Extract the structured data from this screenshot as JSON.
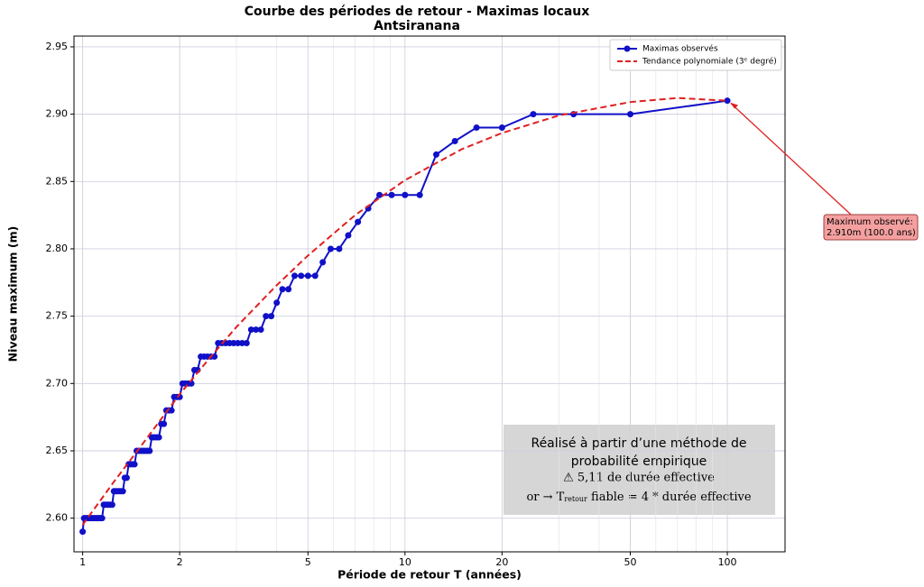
{
  "chart_data": {
    "type": "line",
    "title": "Courbe des périodes de retour - Maximas locaux",
    "subtitle": "Antsiranana",
    "x_label": "Période de retour T (années)",
    "y_label": "Niveau maximum (m)",
    "x_scale": "log",
    "xlim": [
      0.94,
      151
    ],
    "ylim": [
      2.575,
      2.958
    ],
    "xticks": [
      1,
      2,
      5,
      10,
      20,
      50,
      100
    ],
    "xminorticks": [
      3,
      4,
      6,
      7,
      8,
      9,
      30,
      40,
      60,
      70,
      80,
      90
    ],
    "yticks": [
      {
        "value": 2.6,
        "label": "2.60"
      },
      {
        "value": 2.65,
        "label": "2.65"
      },
      {
        "value": 2.7,
        "label": "2.70"
      },
      {
        "value": 2.75,
        "label": "2.75"
      },
      {
        "value": 2.8,
        "label": "2.80"
      },
      {
        "value": 2.85,
        "label": "2.85"
      },
      {
        "value": 2.9,
        "label": "2.90"
      },
      {
        "value": 2.95,
        "label": "2.95"
      }
    ],
    "grid": true,
    "legend": "upper right",
    "series": [
      {
        "name": "Maximas observés",
        "color": "#1010c8",
        "markers": true,
        "dashed": false,
        "x": [
          1,
          1.01,
          1.02,
          1.031,
          1.042,
          1.053,
          1.064,
          1.075,
          1.087,
          1.099,
          1.111,
          1.124,
          1.136,
          1.149,
          1.163,
          1.176,
          1.19,
          1.205,
          1.22,
          1.235,
          1.25,
          1.266,
          1.282,
          1.299,
          1.316,
          1.333,
          1.351,
          1.37,
          1.389,
          1.408,
          1.429,
          1.449,
          1.471,
          1.493,
          1.515,
          1.538,
          1.563,
          1.587,
          1.613,
          1.639,
          1.667,
          1.695,
          1.724,
          1.754,
          1.786,
          1.818,
          1.852,
          1.887,
          1.923,
          1.961,
          2,
          2.041,
          2.083,
          2.128,
          2.174,
          2.222,
          2.273,
          2.326,
          2.381,
          2.439,
          2.5,
          2.564,
          2.632,
          2.703,
          2.778,
          2.857,
          2.941,
          3.03,
          3.125,
          3.226,
          3.333,
          3.448,
          3.571,
          3.704,
          3.846,
          4,
          4.167,
          4.348,
          4.545,
          4.762,
          5,
          5.263,
          5.556,
          5.882,
          6.25,
          6.667,
          7.143,
          7.692,
          8.333,
          9.091,
          10,
          11.111,
          12.5,
          14.286,
          16.667,
          20,
          25,
          33.333,
          50,
          100
        ],
        "values": [
          2.59,
          2.6,
          2.6,
          2.6,
          2.6,
          2.6,
          2.6,
          2.6,
          2.6,
          2.6,
          2.6,
          2.6,
          2.6,
          2.6,
          2.61,
          2.61,
          2.61,
          2.61,
          2.61,
          2.61,
          2.62,
          2.62,
          2.62,
          2.62,
          2.62,
          2.62,
          2.63,
          2.63,
          2.64,
          2.64,
          2.64,
          2.64,
          2.65,
          2.65,
          2.65,
          2.65,
          2.65,
          2.65,
          2.65,
          2.66,
          2.66,
          2.66,
          2.66,
          2.67,
          2.67,
          2.68,
          2.68,
          2.68,
          2.69,
          2.69,
          2.69,
          2.7,
          2.7,
          2.7,
          2.7,
          2.71,
          2.71,
          2.72,
          2.72,
          2.72,
          2.72,
          2.72,
          2.73,
          2.73,
          2.73,
          2.73,
          2.73,
          2.73,
          2.73,
          2.73,
          2.74,
          2.74,
          2.74,
          2.75,
          2.75,
          2.76,
          2.77,
          2.77,
          2.78,
          2.78,
          2.78,
          2.78,
          2.79,
          2.8,
          2.8,
          2.81,
          2.82,
          2.83,
          2.84,
          2.84,
          2.84,
          2.84,
          2.87,
          2.88,
          2.89,
          2.89,
          2.9,
          2.9,
          2.9,
          2.91
        ]
      },
      {
        "name": "Tendance polynomiale (3ᵉ degré)",
        "color": "#e02020",
        "markers": false,
        "dashed": true,
        "x": [
          1,
          1.25,
          1.5,
          2,
          2.5,
          3,
          4,
          5,
          7,
          10,
          15,
          20,
          30,
          50,
          70,
          100
        ],
        "values": [
          2.595,
          2.627,
          2.652,
          2.692,
          2.72,
          2.742,
          2.773,
          2.795,
          2.825,
          2.851,
          2.874,
          2.886,
          2.899,
          2.909,
          2.912,
          2.91
        ]
      }
    ],
    "annotations": [
      {
        "text_lines": [
          "Maximum observé:",
          "2.910m (100.0 ans)"
        ]
      }
    ],
    "note": {
      "lines": [
        "Réalisé à partir d’une méthode de",
        "probabilité empirique",
        "⚠ 5,11 de durée effective"
      ],
      "formula": [
        "or → T",
        "retour",
        " fiable = 4 * durée effective"
      ]
    }
  }
}
